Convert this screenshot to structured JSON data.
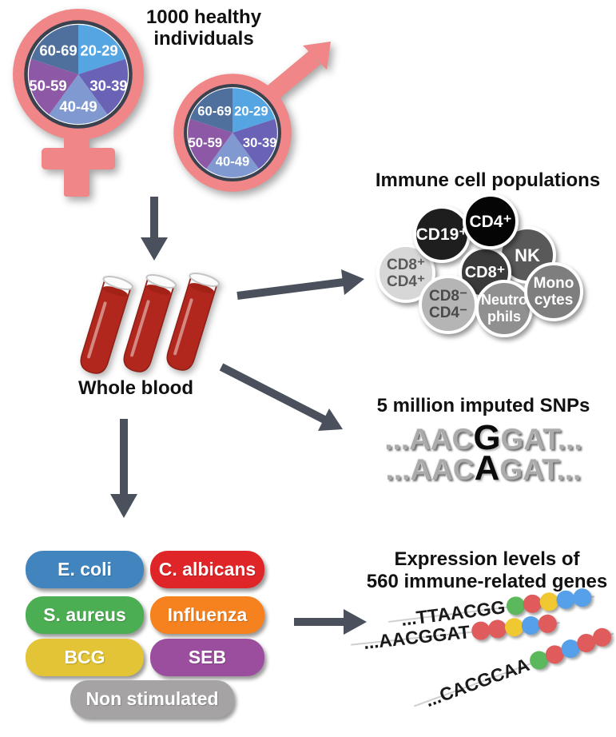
{
  "colors": {
    "arrow": "#4A515C",
    "symbol_pink": "#F08687",
    "pie_border": "#39424E",
    "blood_red": "#B1271D",
    "pie": {
      "20-29": "#55A5E3",
      "30-39": "#6A63B5",
      "40-49": "#8099D0",
      "50-59": "#8D58A6",
      "60-69": "#4F6F9D"
    },
    "dots": {
      "green": "#5CB85C",
      "red": "#E05C5C",
      "yellow": "#EFC832",
      "blue": "#55A0E8"
    }
  },
  "header": {
    "title_line1": "1000 healthy",
    "title_line2": "individuals"
  },
  "pie_labels": [
    "20-29",
    "30-39",
    "40-49",
    "50-59",
    "60-69"
  ],
  "whole_blood_label": "Whole blood",
  "immune_cells": {
    "title": "Immune cell populations",
    "cells": [
      {
        "lines": [
          "CD19⁺"
        ],
        "bg": "#1E1E1E",
        "fg": "#FFFFFF"
      },
      {
        "lines": [
          "CD4⁺"
        ],
        "bg": "#050505",
        "fg": "#FFFFFF"
      },
      {
        "lines": [
          "NK"
        ],
        "bg": "#595959",
        "fg": "#FFFFFF"
      },
      {
        "lines": [
          "CD8⁺"
        ],
        "bg": "#3A3A3A",
        "fg": "#FFFFFF"
      },
      {
        "lines": [
          "CD8⁺",
          "CD4⁺"
        ],
        "bg": "#D7D7D7",
        "fg": "#5A5A5A"
      },
      {
        "lines": [
          "CD8⁻",
          "CD4⁻"
        ],
        "bg": "#B5B5B5",
        "fg": "#4A4A4A"
      },
      {
        "lines": [
          "Neutro",
          "phils"
        ],
        "bg": "#909090",
        "fg": "#FFFFFF"
      },
      {
        "lines": [
          "Mono",
          "cytes"
        ],
        "bg": "#7E7E7E",
        "fg": "#FFFFFF"
      }
    ]
  },
  "snps": {
    "title": "5 million imputed SNPs",
    "rows": [
      {
        "pre": "...AAC",
        "snp": "G",
        "post": "GAT..."
      },
      {
        "pre": "...AAC",
        "snp": "A",
        "post": "GAT..."
      }
    ]
  },
  "stimuli": {
    "boxes": [
      {
        "label": "E. coli",
        "color": "#4184BE"
      },
      {
        "label": "C. albicans",
        "color": "#E02528"
      },
      {
        "label": "S. aureus",
        "color": "#4CAE52"
      },
      {
        "label": "Influenza",
        "color": "#F6821F"
      },
      {
        "label": "BCG",
        "color": "#E2C436"
      },
      {
        "label": "SEB",
        "color": "#9C4E9E"
      },
      {
        "label": "Non stimulated",
        "color": "#A5A3A3"
      }
    ]
  },
  "expression": {
    "title_line1": "Expression levels of",
    "title_line2": "560 immune-related genes",
    "rows": [
      {
        "seq": "...TTAACGG",
        "dots": [
          "green",
          "red",
          "yellow",
          "blue",
          "blue"
        ]
      },
      {
        "seq": "...AACGGAT",
        "dots": [
          "red",
          "red",
          "yellow",
          "blue",
          "red"
        ]
      },
      {
        "seq": "...CACGCAA",
        "dots": [
          "green",
          "red",
          "blue",
          "red",
          "red"
        ]
      }
    ]
  }
}
